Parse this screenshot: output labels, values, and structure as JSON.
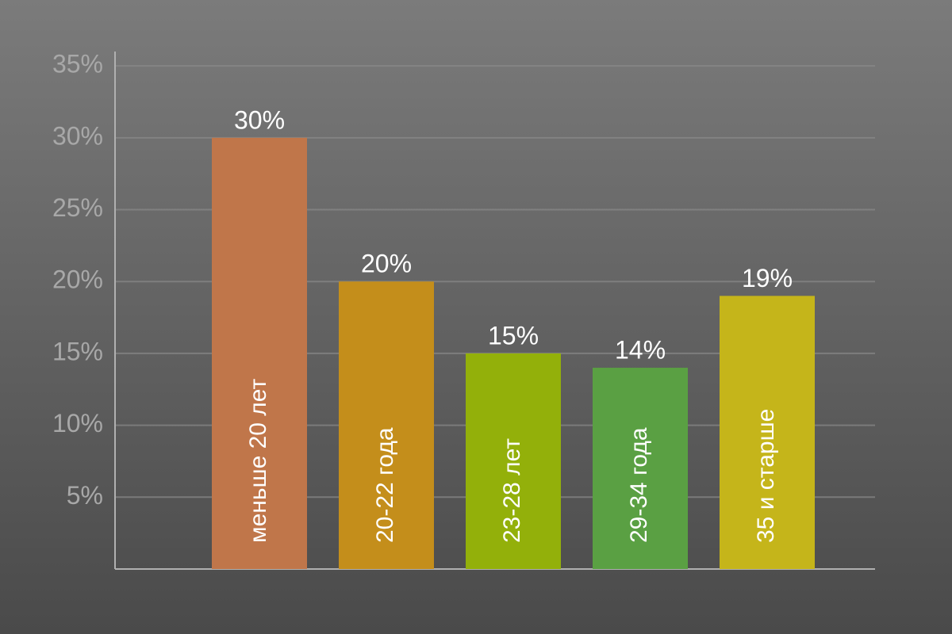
{
  "chart_data": {
    "type": "bar",
    "categories": [
      "меньше 20 лет",
      "20-22 года",
      "23-28 лет",
      "29-34 года",
      "35 и старше"
    ],
    "values": [
      30,
      20,
      15,
      14,
      19
    ],
    "value_labels": [
      "30%",
      "20%",
      "15%",
      "14%",
      "19%"
    ],
    "colors": [
      "#c0764a",
      "#c48e1b",
      "#93b00a",
      "#5aa043",
      "#c5b51a"
    ],
    "ylim": [
      0,
      36
    ],
    "yticks": [
      {
        "value": 5,
        "label": "5%"
      },
      {
        "value": 10,
        "label": "10%"
      },
      {
        "value": 15,
        "label": "15%"
      },
      {
        "value": 20,
        "label": "20%"
      },
      {
        "value": 25,
        "label": "25%"
      },
      {
        "value": 30,
        "label": "30%"
      },
      {
        "value": 35,
        "label": "35%"
      }
    ],
    "grid": true
  }
}
